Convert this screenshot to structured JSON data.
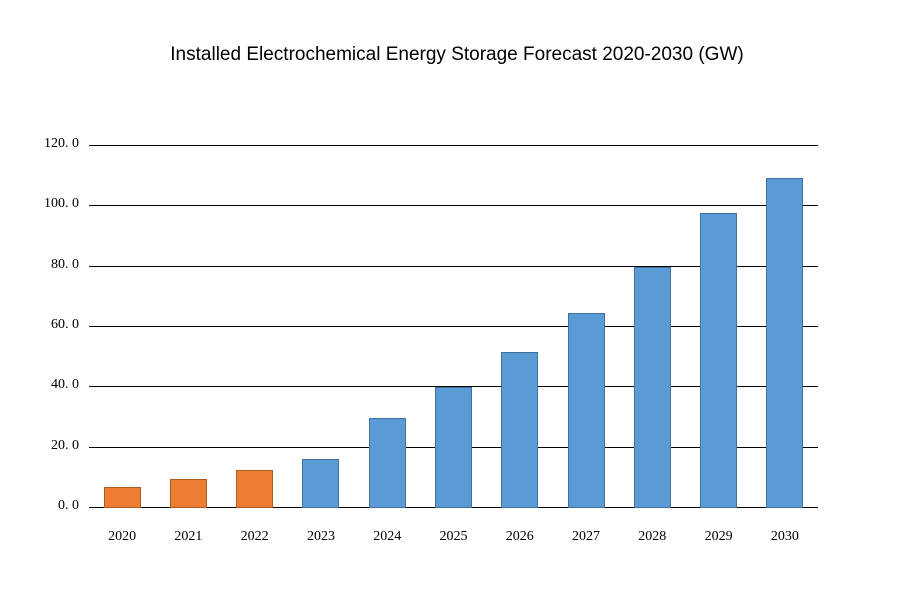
{
  "page": {
    "background": "#FFFFFF"
  },
  "chart_data": {
    "type": "bar",
    "title": "Installed Electrochemical Energy Storage Forecast 2020-2030 (GW)",
    "unit": "GW",
    "categories": [
      "2020",
      "2021",
      "2022",
      "2023",
      "2024",
      "2025",
      "2026",
      "2027",
      "2028",
      "2029",
      "2030"
    ],
    "values": [
      7.0,
      9.5,
      12.6,
      16.4,
      29.9,
      40.0,
      51.7,
      64.8,
      79.9,
      97.9,
      109.4
    ],
    "ylim": [
      0,
      120
    ],
    "y_tick_values": [
      0,
      20,
      40,
      60,
      80,
      100,
      120
    ],
    "y_tick_labels": [
      "0. 0",
      "20. 0",
      "40. 0",
      "60. 0",
      "80. 0",
      "100. 0",
      "120. 0"
    ],
    "grid": true,
    "legend": "none",
    "xlabel": "",
    "ylabel": "",
    "colors": {
      "gridline": "#000000",
      "text": "#000000",
      "historical_fill": "#ED7D31",
      "historical_border": "#AE5A21",
      "forecast_fill": "#5B9BD5",
      "forecast_border": "#41719C"
    },
    "bar_fill_colors": [
      "#ED7D31",
      "#ED7D31",
      "#ED7D31",
      "#5B9BD5",
      "#5B9BD5",
      "#5B9BD5",
      "#5B9BD5",
      "#5B9BD5",
      "#5B9BD5",
      "#5B9BD5",
      "#5B9BD5"
    ],
    "bar_border_colors": [
      "#AE5A21",
      "#AE5A21",
      "#AE5A21",
      "#41719C",
      "#41719C",
      "#41719C",
      "#41719C",
      "#41719C",
      "#41719C",
      "#41719C",
      "#41719C"
    ]
  }
}
